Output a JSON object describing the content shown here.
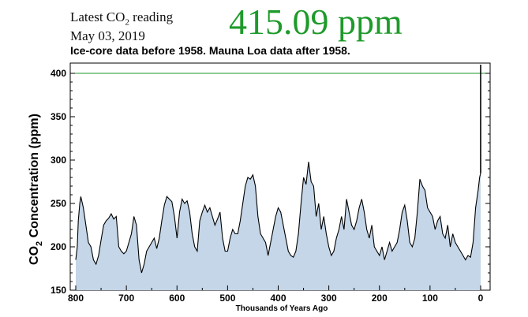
{
  "header": {
    "latest_prefix": "Latest CO",
    "latest_sub": "2",
    "latest_suffix": " reading",
    "date": "May 03, 2019",
    "reading": "415.09 ppm",
    "reading_color": "#1e9a2a",
    "subtitle": "Ice-core data before 1958. Mauna Loa data after 1958."
  },
  "chart_data": {
    "type": "area",
    "title": "Ice-core data before 1958. Mauna Loa data after 1958.",
    "xlabel": "Thousands of Years Ago",
    "ylabel_main": "CO",
    "ylabel_sub": "2",
    "ylabel_tail": " Concentration (ppm)",
    "xlim": [
      800,
      0
    ],
    "ylim": [
      150,
      410
    ],
    "xticks": [
      800,
      700,
      600,
      500,
      400,
      300,
      200,
      100,
      0
    ],
    "yticks": [
      150,
      200,
      250,
      300,
      350,
      400
    ],
    "reference_line": 400,
    "reference_line_color": "#1e9a2a",
    "fill_color": "#c4d6e8",
    "line_color": "#000000",
    "grid": false,
    "series": [
      {
        "x": [
          800,
          797,
          795,
          792,
          790,
          785,
          780,
          775,
          770,
          765,
          760,
          755,
          750,
          745,
          740,
          735,
          730,
          725,
          720,
          715,
          710,
          705,
          700,
          695,
          690,
          685,
          680,
          675,
          670,
          665,
          660,
          655,
          650,
          645,
          640,
          635,
          630,
          625,
          620,
          615,
          610,
          605,
          600,
          595,
          590,
          585,
          580,
          575,
          570,
          565,
          560,
          555,
          550,
          545,
          540,
          535,
          530,
          525,
          520,
          515,
          510,
          505,
          500,
          495,
          490,
          485,
          480,
          475,
          470,
          465,
          460,
          455,
          450,
          445,
          440,
          435,
          430,
          425,
          420,
          415,
          410,
          405,
          400,
          395,
          390,
          385,
          380,
          375,
          370,
          365,
          360,
          355,
          350,
          345,
          340,
          335,
          330,
          325,
          320,
          315,
          310,
          305,
          300,
          295,
          290,
          285,
          280,
          275,
          270,
          265,
          260,
          255,
          250,
          245,
          240,
          235,
          230,
          225,
          220,
          215,
          210,
          205,
          200,
          195,
          190,
          185,
          180,
          175,
          170,
          165,
          160,
          155,
          150,
          145,
          140,
          135,
          130,
          125,
          120,
          115,
          110,
          105,
          100,
          95,
          90,
          85,
          80,
          75,
          70,
          65,
          60,
          55,
          50,
          45,
          40,
          35,
          30,
          25,
          20,
          15,
          10,
          5,
          2,
          0
        ],
        "y": [
          185,
          200,
          230,
          250,
          258,
          245,
          225,
          205,
          200,
          185,
          180,
          190,
          208,
          225,
          230,
          233,
          238,
          232,
          235,
          200,
          195,
          192,
          195,
          205,
          215,
          235,
          225,
          185,
          170,
          180,
          195,
          200,
          205,
          210,
          198,
          210,
          230,
          248,
          258,
          255,
          252,
          235,
          210,
          240,
          255,
          250,
          253,
          240,
          215,
          200,
          195,
          230,
          240,
          248,
          240,
          245,
          235,
          225,
          232,
          240,
          210,
          195,
          195,
          210,
          220,
          215,
          215,
          230,
          250,
          270,
          280,
          278,
          283,
          270,
          235,
          215,
          210,
          205,
          190,
          205,
          220,
          235,
          245,
          240,
          225,
          210,
          195,
          190,
          188,
          195,
          215,
          250,
          280,
          272,
          298,
          275,
          270,
          235,
          250,
          220,
          235,
          215,
          200,
          190,
          195,
          210,
          220,
          235,
          220,
          255,
          240,
          225,
          220,
          230,
          245,
          255,
          240,
          220,
          210,
          225,
          200,
          195,
          190,
          200,
          185,
          195,
          205,
          195,
          200,
          205,
          220,
          240,
          248,
          230,
          205,
          200,
          210,
          240,
          278,
          270,
          265,
          245,
          240,
          235,
          220,
          230,
          235,
          215,
          210,
          225,
          200,
          215,
          205,
          200,
          195,
          190,
          185,
          190,
          188,
          205,
          245,
          265,
          280,
          285
        ]
      }
    ],
    "spike": {
      "x": 0,
      "from": 285,
      "to": 410
    }
  }
}
